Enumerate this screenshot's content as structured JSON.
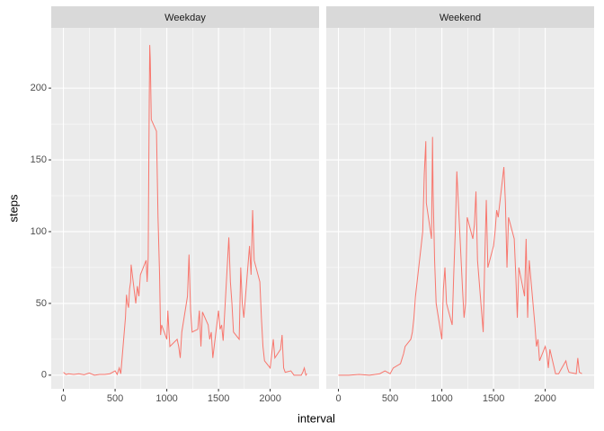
{
  "x_label": "interval",
  "y_label": "steps",
  "chart_data": [
    {
      "type": "line",
      "title": "Weekday",
      "x": [
        0,
        25,
        50,
        100,
        150,
        200,
        250,
        300,
        350,
        400,
        450,
        500,
        520,
        540,
        555,
        600,
        610,
        620,
        630,
        640,
        650,
        655,
        700,
        715,
        730,
        745,
        800,
        810,
        820,
        830,
        835,
        840,
        845,
        850,
        900,
        915,
        930,
        940,
        950,
        1000,
        1010,
        1020,
        1030,
        1100,
        1115,
        1130,
        1145,
        1200,
        1215,
        1230,
        1245,
        1300,
        1315,
        1330,
        1345,
        1400,
        1415,
        1430,
        1445,
        1500,
        1515,
        1530,
        1545,
        1600,
        1615,
        1630,
        1645,
        1700,
        1715,
        1730,
        1745,
        1800,
        1815,
        1830,
        1845,
        1900,
        1915,
        1930,
        1945,
        2000,
        2015,
        2030,
        2045,
        2100,
        2115,
        2130,
        2145,
        2200,
        2230,
        2300,
        2315,
        2330,
        2345,
        2355
      ],
      "series": [
        {
          "color": "#F8766D",
          "values": [
            2,
            0.5,
            1,
            0.5,
            1,
            0.3,
            1.5,
            0,
            0.5,
            0.5,
            1,
            3,
            0.5,
            5,
            1,
            40,
            56,
            50,
            47,
            60,
            65,
            77,
            50,
            62,
            55,
            70,
            80,
            65,
            82,
            190,
            230,
            220,
            200,
            178,
            170,
            110,
            70,
            28,
            35,
            25,
            45,
            32,
            20,
            25,
            20,
            12,
            30,
            55,
            84,
            45,
            30,
            32,
            45,
            20,
            44,
            35,
            25,
            30,
            12,
            45,
            32,
            35,
            24,
            96,
            65,
            50,
            30,
            25,
            75,
            50,
            40,
            90,
            70,
            115,
            80,
            65,
            40,
            20,
            10,
            5,
            15,
            25,
            12,
            18,
            28,
            5,
            2,
            3,
            0,
            0,
            2,
            5,
            0,
            1
          ]
        }
      ],
      "xlim": [
        -117.75,
        2472.75
      ],
      "ylim": [
        -9.5,
        242
      ],
      "xticks": [
        0,
        500,
        1000,
        1500,
        2000
      ],
      "yticks": [
        0,
        50,
        100,
        150,
        200
      ],
      "grid": true
    },
    {
      "type": "line",
      "title": "Weekend",
      "x": [
        0,
        100,
        200,
        300,
        400,
        450,
        500,
        530,
        600,
        630,
        645,
        700,
        715,
        730,
        745,
        800,
        815,
        830,
        845,
        850,
        900,
        910,
        915,
        930,
        945,
        1000,
        1015,
        1030,
        1045,
        1100,
        1115,
        1130,
        1145,
        1200,
        1215,
        1230,
        1245,
        1300,
        1315,
        1330,
        1345,
        1400,
        1415,
        1430,
        1445,
        1500,
        1515,
        1530,
        1545,
        1600,
        1615,
        1630,
        1645,
        1700,
        1715,
        1730,
        1745,
        1800,
        1815,
        1830,
        1845,
        1900,
        1915,
        1930,
        1945,
        2000,
        2015,
        2030,
        2045,
        2100,
        2130,
        2145,
        2200,
        2215,
        2230,
        2300,
        2315,
        2330,
        2355
      ],
      "series": [
        {
          "color": "#F8766D",
          "values": [
            0,
            0,
            0.5,
            0,
            1,
            3,
            1,
            5,
            8,
            15,
            20,
            25,
            30,
            40,
            55,
            90,
            100,
            140,
            163,
            120,
            95,
            166,
            130,
            80,
            50,
            25,
            60,
            75,
            50,
            35,
            70,
            100,
            142,
            60,
            40,
            50,
            110,
            95,
            105,
            128,
            80,
            30,
            80,
            122,
            75,
            90,
            100,
            115,
            110,
            145,
            120,
            75,
            110,
            95,
            70,
            40,
            75,
            55,
            95,
            40,
            80,
            35,
            20,
            25,
            10,
            20,
            15,
            5,
            18,
            1,
            1,
            3,
            10,
            5,
            2,
            1,
            12,
            2,
            1
          ]
        }
      ],
      "xlim": [
        -117.75,
        2472.75
      ],
      "ylim": [
        -9.5,
        242
      ],
      "xticks": [
        0,
        500,
        1000,
        1500,
        2000
      ],
      "yticks": [
        0,
        50,
        100,
        150,
        200
      ],
      "grid": true
    }
  ]
}
